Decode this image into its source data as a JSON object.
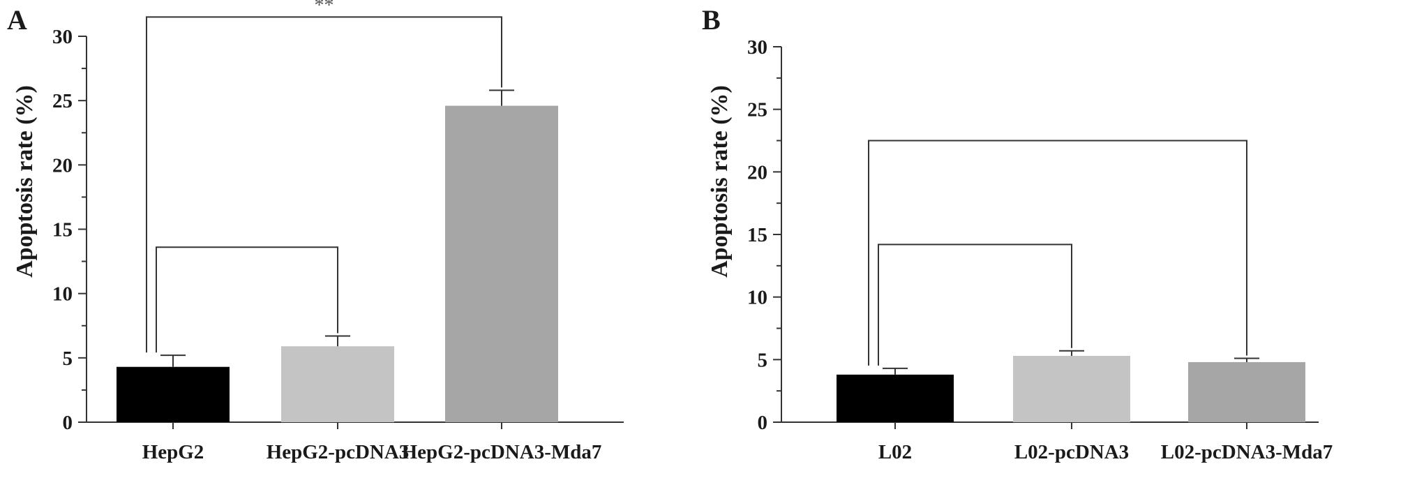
{
  "chart_data": [
    {
      "type": "bar",
      "panel": "A",
      "ylabel": "Apoptosis rate (%)",
      "ylim": [
        0,
        30
      ],
      "yticks": [
        0,
        5,
        10,
        15,
        20,
        25,
        30
      ],
      "categories": [
        "HepG2",
        "HepG2-pcDNA3",
        "HepG2-pcDNA3-Mda7"
      ],
      "values": [
        4.3,
        5.9,
        24.6
      ],
      "errors": [
        0.9,
        0.8,
        1.2
      ],
      "colors": [
        "#000000",
        "#c4c4c4",
        "#a6a6a6"
      ],
      "comparisons": [
        {
          "from": 0,
          "to": 2,
          "y": 31.5,
          "label": "**"
        },
        {
          "from": 0,
          "to": 1,
          "y": 13.6,
          "label": ""
        }
      ]
    },
    {
      "type": "bar",
      "panel": "B",
      "ylabel": "Apoptosis rate (%)",
      "ylim": [
        0,
        30
      ],
      "yticks": [
        0,
        5,
        10,
        15,
        20,
        25,
        30
      ],
      "categories": [
        "L02",
        "L02-pcDNA3",
        "L02-pcDNA3-Mda7"
      ],
      "values": [
        3.8,
        5.3,
        4.8
      ],
      "errors": [
        0.5,
        0.4,
        0.3
      ],
      "colors": [
        "#000000",
        "#c4c4c4",
        "#a6a6a6"
      ],
      "comparisons": [
        {
          "from": 0,
          "to": 2,
          "y": 22.5,
          "label": ""
        },
        {
          "from": 0,
          "to": 1,
          "y": 14.2,
          "label": ""
        }
      ]
    }
  ]
}
